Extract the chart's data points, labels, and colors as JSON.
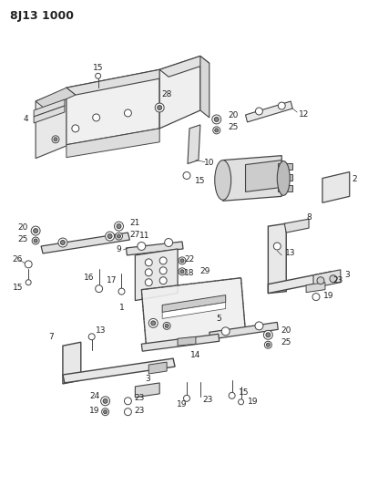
{
  "title": "8J13 1000",
  "bg_color": "#ffffff",
  "lc": "#444444",
  "tc": "#222222",
  "figsize": [
    4.04,
    5.33
  ],
  "dpi": 100
}
